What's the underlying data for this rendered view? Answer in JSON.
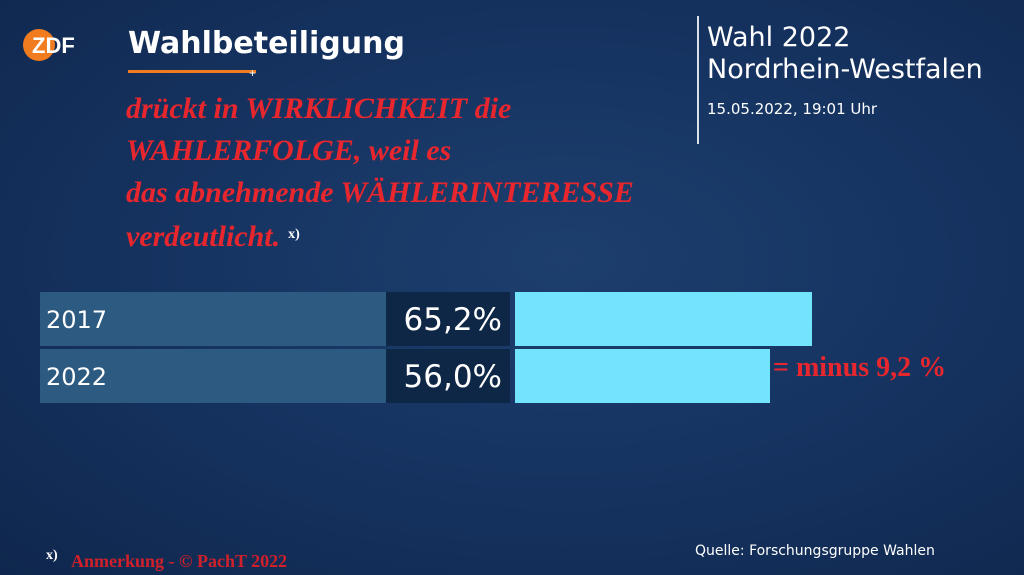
{
  "broadcaster": {
    "logo_text": "ZDF",
    "accent": "#f07c1f"
  },
  "header": {
    "title": "Wahlbeteiligung",
    "election_line1": "Wahl 2022",
    "election_line2": "Nordrhein-Westfalen",
    "datetime": "15.05.2022, 19:01 Uhr"
  },
  "annotation": {
    "lines": [
      "drückt in WIRKLICHKEIT die",
      "WAHLERFOLGE, weil es",
      "das abnehmende  WÄHLERINTERESSE",
      "verdeutlicht."
    ],
    "marker": "x)",
    "color": "#e8262e"
  },
  "chart_data": {
    "type": "bar",
    "orientation": "horizontal",
    "categories": [
      "2017",
      "2022"
    ],
    "values": [
      65.2,
      56.0
    ],
    "value_labels": [
      "65,2%",
      "56,0%"
    ],
    "unit": "%",
    "bar_color": "#72e4fb",
    "difference_label": "= minus  9,2 %"
  },
  "footer": {
    "footnote_marker": "x)",
    "copyright": "Anmerkung - © PachT 2022",
    "source": "Quelle: Forschungsgruppe Wahlen"
  }
}
